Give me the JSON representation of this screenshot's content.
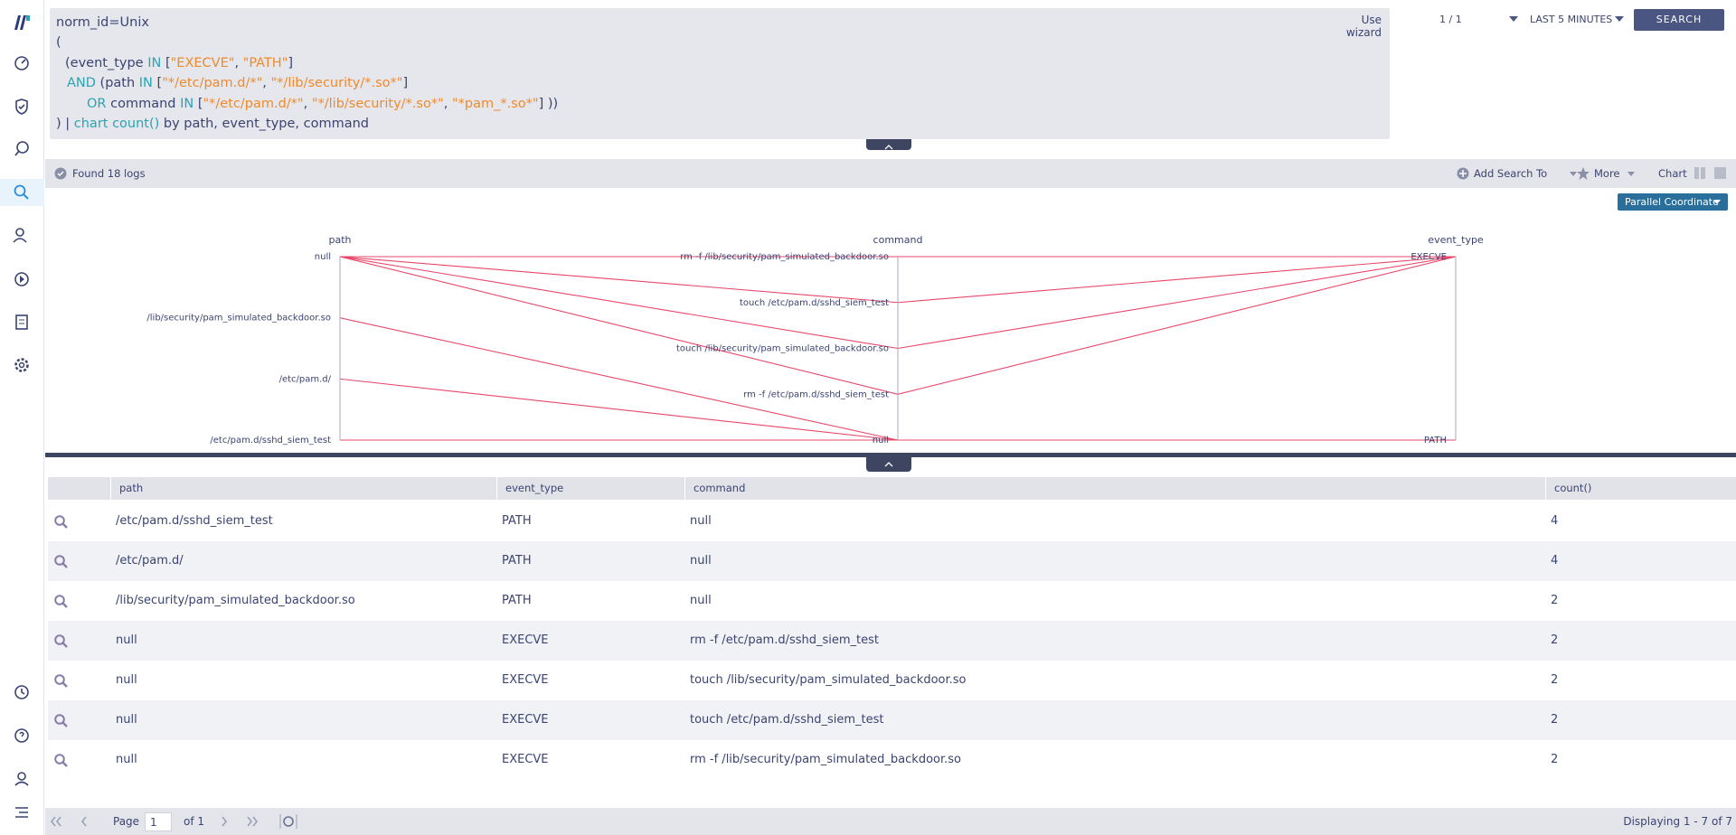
{
  "query": {
    "lines": [
      [
        {
          "text": "norm_id=Unix"
        }
      ],
      [
        {
          "text": "("
        }
      ],
      [
        {
          "text": "(event_type "
        },
        {
          "text": "IN",
          "color": "#2aa3b6"
        },
        {
          "text": " ["
        },
        {
          "text": "\"EXECVE\"",
          "color": "#ef8a2c"
        },
        {
          "text": ", "
        },
        {
          "text": "\"PATH\"",
          "color": "#ef8a2c"
        },
        {
          "text": "]"
        }
      ],
      [
        {
          "text": "AND",
          "color": "#2aa3b6"
        },
        {
          "text": " (path "
        },
        {
          "text": "IN",
          "color": "#2aa3b6"
        },
        {
          "text": " ["
        },
        {
          "text": "\"*/etc/pam.d/*\"",
          "color": "#ef8a2c"
        },
        {
          "text": ", "
        },
        {
          "text": "\"*/lib/security/*.so*\"",
          "color": "#ef8a2c"
        },
        {
          "text": "]"
        }
      ],
      [
        {
          "text": "OR",
          "color": "#2aa3b6"
        },
        {
          "text": " command "
        },
        {
          "text": "IN",
          "color": "#2aa3b6"
        },
        {
          "text": " ["
        },
        {
          "text": "\"*/etc/pam.d/*\"",
          "color": "#ef8a2c"
        },
        {
          "text": ", "
        },
        {
          "text": "\"*/lib/security/*.so*\"",
          "color": "#ef8a2c"
        },
        {
          "text": ", "
        },
        {
          "text": "\"*pam_*.so*\"",
          "color": "#ef8a2c"
        },
        {
          "text": "] ))"
        }
      ],
      [
        {
          "text": ") | "
        },
        {
          "text": "chart count()",
          "color": "#2aa3b6"
        },
        {
          "text": " by path, event_type, command"
        }
      ]
    ],
    "wizard": "Use wizard",
    "page_counter": "1 / 1",
    "time_range": "LAST 5 MINUTES",
    "search": "SEARCH"
  },
  "results_bar": {
    "found": "Found 18 logs",
    "add_search": "Add Search To",
    "more": "More",
    "chart": "Chart",
    "chart_type": "Parallel Coordinate"
  },
  "parallel": {
    "color": "#e8476a",
    "axes": [
      {
        "name": "path",
        "categories": [
          "null",
          "/lib/security/pam_simulated_backdoor.so",
          "/etc/pam.d/",
          "/etc/pam.d/sshd_siem_test"
        ]
      },
      {
        "name": "command",
        "categories": [
          "rm -f /lib/security/pam_simulated_backdoor.so",
          "touch /etc/pam.d/sshd_siem_test",
          "touch /lib/security/pam_simulated_backdoor.so",
          "rm -f /etc/pam.d/sshd_siem_test",
          "null"
        ]
      },
      {
        "name": "event_type",
        "categories": [
          "EXECVE",
          "PATH"
        ]
      }
    ]
  },
  "table": {
    "columns": [
      "path",
      "event_type",
      "command",
      "count()"
    ],
    "rows": [
      [
        "/etc/pam.d/sshd_siem_test",
        "PATH",
        "null",
        4
      ],
      [
        "/etc/pam.d/",
        "PATH",
        "null",
        4
      ],
      [
        "/lib/security/pam_simulated_backdoor.so",
        "PATH",
        "null",
        2
      ],
      [
        "null",
        "EXECVE",
        "rm -f /etc/pam.d/sshd_siem_test",
        2
      ],
      [
        "null",
        "EXECVE",
        "touch /lib/security/pam_simulated_backdoor.so",
        2
      ],
      [
        "null",
        "EXECVE",
        "touch /etc/pam.d/sshd_siem_test",
        2
      ],
      [
        "null",
        "EXECVE",
        "rm -f /lib/security/pam_simulated_backdoor.so",
        2
      ]
    ]
  },
  "pager": {
    "page": "Page",
    "current": "1",
    "of": "of 1",
    "displaying": "Displaying 1 - 7 of 7"
  }
}
